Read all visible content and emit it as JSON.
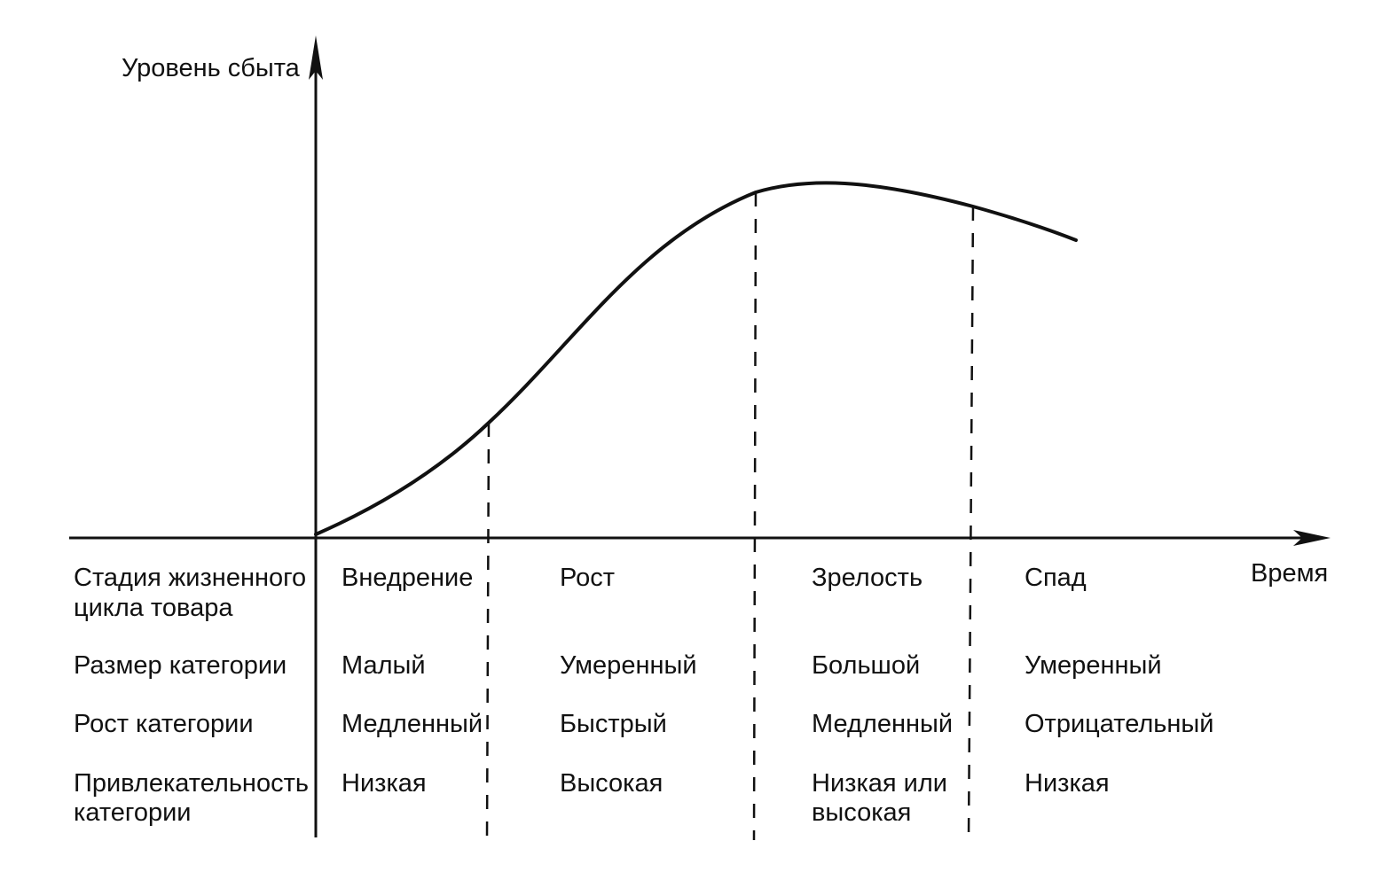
{
  "y_axis_label": "Уровень сбыта",
  "x_axis_label": "Время",
  "row_headers": [
    [
      "Стадия жизненного",
      "цикла товара"
    ],
    [
      "Размер категории"
    ],
    [
      "Рост категории"
    ],
    [
      "Привлекательность",
      "категории"
    ]
  ],
  "stages": [
    {
      "name": "Внедрение",
      "size": "Малый",
      "growth": "Медленный",
      "attractiveness": [
        "Низкая"
      ]
    },
    {
      "name": "Рост",
      "size": "Умеренный",
      "growth": "Быстрый",
      "attractiveness": [
        "Высокая"
      ]
    },
    {
      "name": "Зрелость",
      "size": "Большой",
      "growth": "Медленный",
      "attractiveness": [
        "Низкая или",
        "высокая"
      ]
    },
    {
      "name": "Спад",
      "size": "Умеренный",
      "growth": "Отрицательный",
      "attractiveness": [
        "Низкая"
      ]
    }
  ]
}
